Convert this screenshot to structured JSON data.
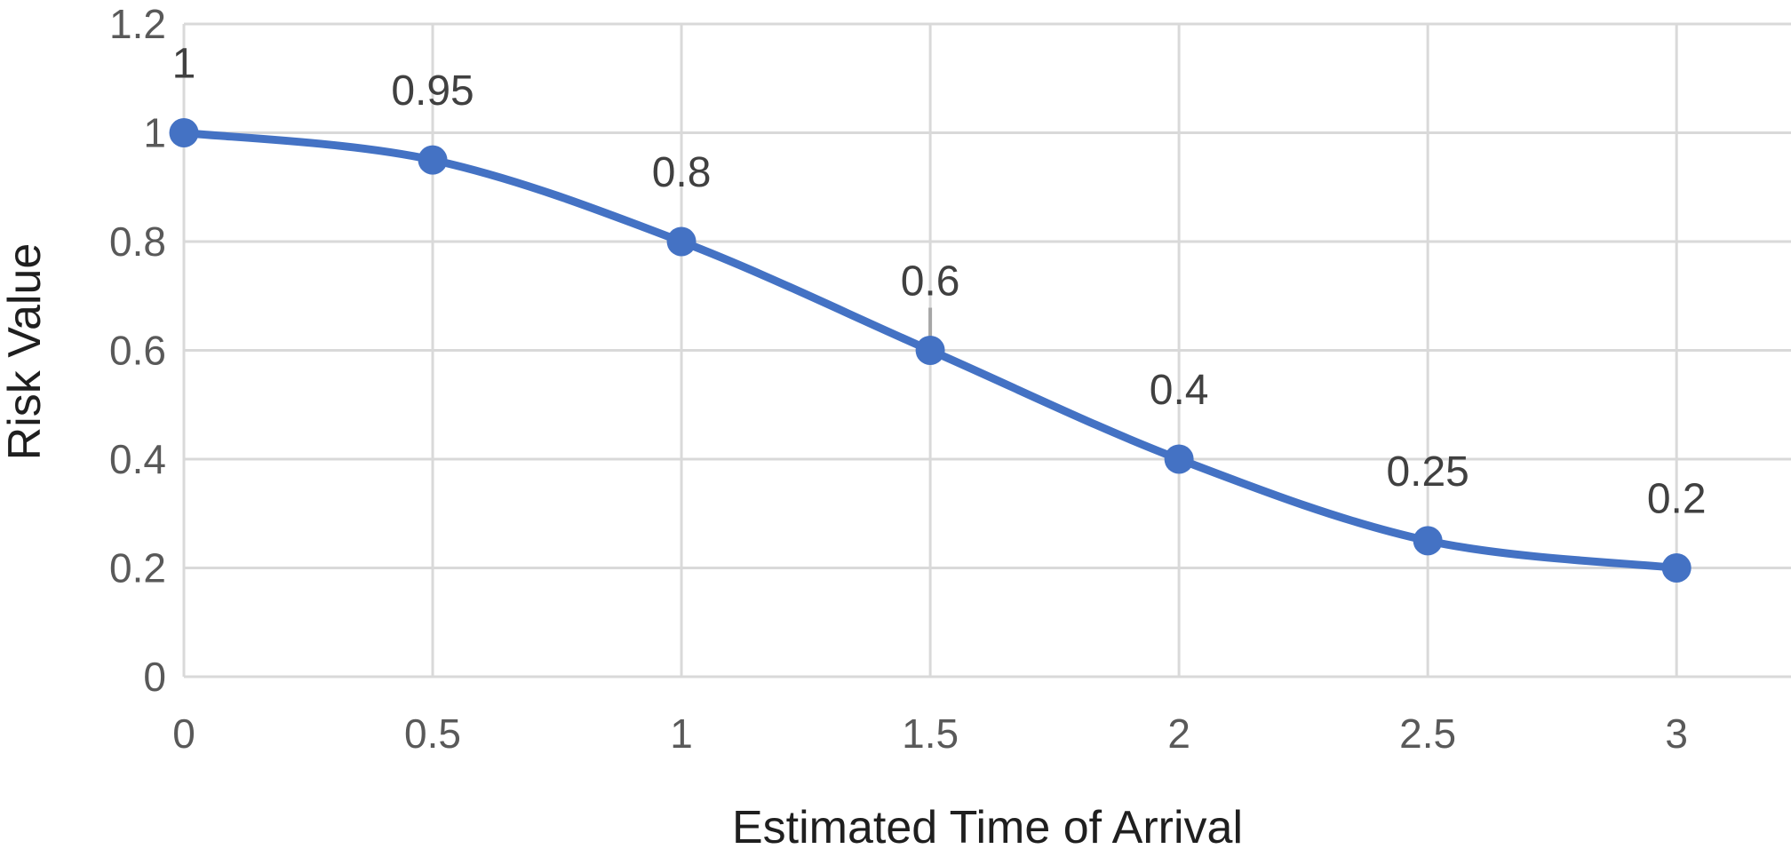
{
  "chart_data": {
    "type": "line",
    "title": "",
    "xlabel": "Estimated Time of Arrival",
    "ylabel": "Risk Value",
    "x": [
      0,
      0.5,
      1,
      1.5,
      2,
      2.5,
      3
    ],
    "series": [
      {
        "name": "Risk Value",
        "values": [
          1,
          0.95,
          0.8,
          0.6,
          0.4,
          0.25,
          0.2
        ]
      }
    ],
    "data_labels": [
      "1",
      "0.95",
      "0.8",
      "0.6",
      "0.4",
      "0.25",
      "0.2"
    ],
    "data_label_position": "above",
    "leader_line_point_index": 3,
    "x_tick_labels": [
      "0",
      "0.5",
      "1",
      "1.5",
      "2",
      "2.5",
      "3"
    ],
    "x_tick_values": [
      0,
      0.5,
      1,
      1.5,
      2,
      2.5,
      3
    ],
    "y_tick_labels": [
      "0",
      "0.2",
      "0.4",
      "0.6",
      "0.8",
      "1",
      "1.2"
    ],
    "y_tick_values": [
      0,
      0.2,
      0.4,
      0.6,
      0.8,
      1,
      1.2
    ],
    "xlim": [
      0,
      3.23
    ],
    "ylim": [
      0,
      1.2
    ],
    "grid": true,
    "legend": "none",
    "smoothed_line": true,
    "marker": "circle",
    "colors": {
      "series": "#4472C4",
      "gridline": "#D9D9D9",
      "tick_label": "#595959",
      "data_label": "#404040",
      "axis_title": "#1F1F1F",
      "leader_line": "#A6A6A6",
      "background": "#FFFFFF"
    }
  }
}
